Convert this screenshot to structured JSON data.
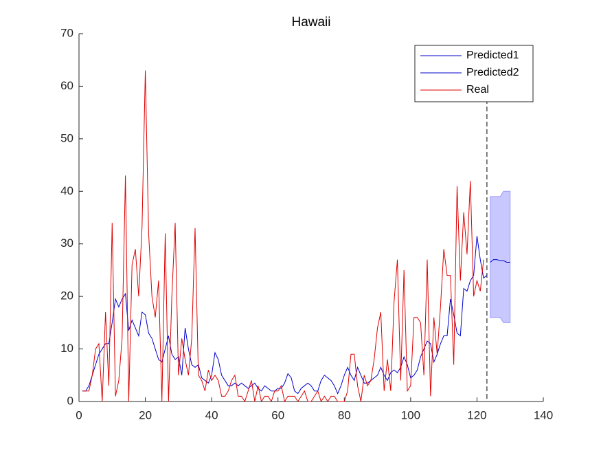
{
  "chart_data": {
    "type": "line",
    "title": "Hawaii",
    "xlim": [
      0,
      140
    ],
    "xticks": [
      0,
      20,
      40,
      60,
      80,
      100,
      120,
      140
    ],
    "ylim": [
      0,
      70
    ],
    "yticks": [
      0,
      10,
      20,
      30,
      40,
      50,
      60,
      70
    ],
    "legend": "upper right",
    "series": [
      {
        "name": "Predicted1",
        "color": "#0000cc",
        "x": [
          1,
          2,
          3,
          4,
          5,
          6,
          7,
          8,
          9,
          10,
          11,
          12,
          13,
          14,
          15,
          16,
          17,
          18,
          19,
          20,
          21,
          22,
          23,
          24,
          25,
          26,
          27,
          28,
          29,
          30,
          31,
          32,
          33,
          34,
          35,
          36,
          37,
          38,
          39,
          40,
          41,
          42,
          43,
          44,
          45,
          46,
          47,
          48,
          49,
          50,
          51,
          52,
          53,
          54,
          55,
          56,
          57,
          58,
          59,
          60,
          61,
          62,
          63,
          64,
          65,
          66,
          67,
          68,
          69,
          70,
          71,
          72,
          73,
          74,
          75,
          76,
          77,
          78,
          79,
          80,
          81,
          82,
          83,
          84,
          85,
          86,
          87,
          88,
          89,
          90,
          91,
          92,
          93,
          94,
          95,
          96,
          97,
          98,
          99,
          100,
          101,
          102,
          103,
          104,
          105,
          106,
          107,
          108,
          109,
          110,
          111,
          112,
          113,
          114,
          115,
          116,
          117,
          118,
          119,
          120,
          121,
          122,
          123
        ],
        "values": [
          2,
          2,
          3,
          5,
          7,
          9,
          10,
          11,
          11,
          15,
          19.5,
          18,
          19.5,
          20.5,
          13.5,
          15.5,
          14,
          12.5,
          17,
          16.5,
          13,
          12,
          10,
          8,
          7.5,
          10,
          12.5,
          9,
          8,
          8.5,
          5,
          14,
          10,
          7,
          6.5,
          7,
          4.5,
          4,
          3.5,
          5,
          9.3,
          8,
          5,
          4,
          3,
          3,
          3.5,
          3,
          3.5,
          3,
          2.5,
          3,
          3.5,
          2.5,
          2,
          3,
          2.5,
          2,
          2,
          2.5,
          2.5,
          3.5,
          5.3,
          4.5,
          2,
          1.5,
          2.5,
          3,
          3.5,
          3,
          2,
          2,
          4,
          5,
          4.5,
          4,
          3,
          1.5,
          3,
          5,
          6.5,
          5,
          4,
          6.5,
          5,
          3.5,
          3.5,
          4,
          4.5,
          5,
          6.5,
          5,
          4,
          5.5,
          6,
          5.5,
          6.5,
          8.5,
          7,
          4.5,
          5,
          6,
          8.5,
          10,
          11.5,
          11,
          7.5,
          9,
          11,
          12.5,
          12.5,
          19.5,
          16.5,
          13,
          12.5,
          21.5,
          21,
          23,
          24,
          31.5,
          27,
          23.5,
          24
        ]
      },
      {
        "name": "Predicted2",
        "color": "#0000cc",
        "x": [
          124,
          125,
          126,
          127,
          128,
          129,
          130
        ],
        "values": [
          26.5,
          27,
          27,
          26.8,
          26.8,
          26.5,
          26.5
        ]
      },
      {
        "name": "Real",
        "color": "#e00000",
        "x": [
          1,
          2,
          3,
          4,
          5,
          6,
          7,
          8,
          9,
          10,
          11,
          12,
          13,
          14,
          15,
          16,
          17,
          18,
          19,
          20,
          21,
          22,
          23,
          24,
          25,
          26,
          27,
          28,
          29,
          30,
          31,
          32,
          33,
          34,
          35,
          36,
          37,
          38,
          39,
          40,
          41,
          42,
          43,
          44,
          45,
          46,
          47,
          48,
          49,
          50,
          51,
          52,
          53,
          54,
          55,
          56,
          57,
          58,
          59,
          60,
          61,
          62,
          63,
          64,
          65,
          66,
          67,
          68,
          69,
          70,
          71,
          72,
          73,
          74,
          75,
          76,
          77,
          78,
          79,
          80,
          81,
          82,
          83,
          84,
          85,
          86,
          87,
          88,
          89,
          90,
          91,
          92,
          93,
          94,
          95,
          96,
          97,
          98,
          99,
          100,
          101,
          102,
          103,
          104,
          105,
          106,
          107,
          108,
          109,
          110,
          111,
          112,
          113,
          114,
          115,
          116,
          117,
          118,
          119,
          120,
          121,
          122
        ],
        "values": [
          2,
          2,
          2,
          5,
          10,
          11,
          0,
          17,
          3,
          34,
          1,
          4,
          12,
          43,
          0,
          26,
          29,
          20,
          33,
          63,
          32,
          20,
          16,
          23,
          0,
          32,
          0,
          20,
          34,
          5,
          12,
          8,
          5,
          12,
          33,
          5,
          4,
          2,
          6,
          4,
          5,
          4,
          1,
          1,
          2,
          4,
          5,
          1,
          1,
          0,
          2,
          4,
          0,
          3,
          0,
          1,
          1,
          0,
          2,
          2,
          3,
          0,
          1,
          1,
          1,
          0,
          1,
          2,
          0,
          0,
          1,
          2,
          0,
          1,
          0,
          1,
          1,
          0,
          0,
          0,
          2,
          9,
          9,
          3,
          0,
          5,
          3,
          4,
          8,
          14,
          17,
          2,
          8,
          2,
          19,
          27,
          4,
          25,
          2,
          3,
          16,
          16,
          15,
          5,
          27,
          1,
          16,
          9,
          18,
          29,
          24,
          24,
          7,
          41,
          23,
          36,
          28,
          42,
          20,
          23,
          21,
          27
        ]
      }
    ],
    "band": {
      "color": "#c8c8ff",
      "x": [
        124,
        127,
        128,
        130
      ],
      "lower": [
        16,
        16,
        15,
        15
      ],
      "upper": [
        39,
        39,
        40,
        40
      ]
    },
    "vline": {
      "x": 123
    }
  }
}
